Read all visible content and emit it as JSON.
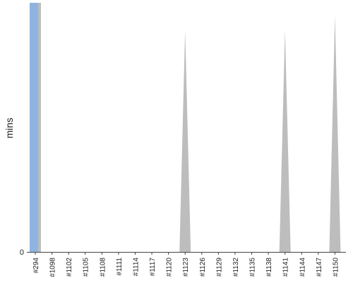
{
  "chart_data": {
    "type": "area",
    "xlabel": "",
    "ylabel": "mins",
    "ylim": [
      0,
      100
    ],
    "y_ticks": [
      "0"
    ],
    "grid": false,
    "legend": "none",
    "categories": [
      "#294",
      "#1098",
      "#1102",
      "#1105",
      "#1108",
      "#1111",
      "#1114",
      "#1117",
      "#1120",
      "#1123",
      "#1126",
      "#1129",
      "#1132",
      "#1135",
      "#1138",
      "#1141",
      "#1144",
      "#1147",
      "#1150"
    ],
    "series": [
      {
        "color": "#bdbdbd",
        "values": [
          100,
          0,
          0,
          0,
          0,
          0,
          0,
          0,
          0,
          89,
          0,
          0,
          0,
          0,
          0,
          89,
          0,
          0,
          95
        ]
      },
      {
        "color": "#8fb4e0",
        "values": [
          100,
          0,
          0,
          0,
          0,
          0,
          0,
          0,
          0,
          0,
          0,
          0,
          0,
          0,
          0,
          0,
          0,
          0,
          0
        ]
      }
    ]
  }
}
